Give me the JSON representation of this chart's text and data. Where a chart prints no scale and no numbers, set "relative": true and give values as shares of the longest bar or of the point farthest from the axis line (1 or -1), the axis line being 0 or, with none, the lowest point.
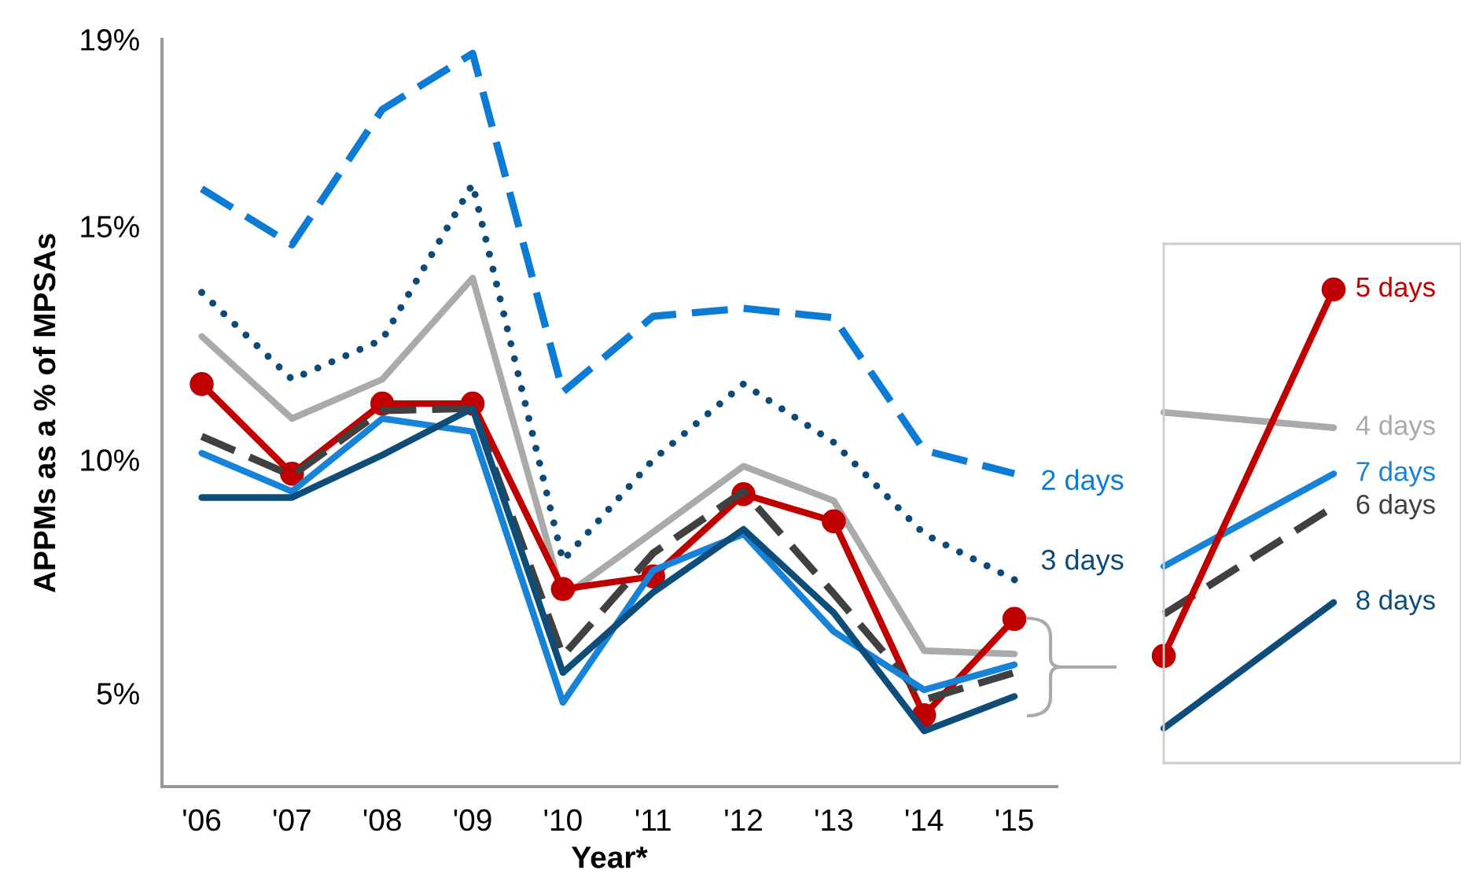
{
  "chart_data": [
    {
      "type": "line",
      "xlabel": "Year*",
      "ylabel": "APPMs as a % of MPSAs",
      "categories": [
        "'06",
        "'07",
        "'08",
        "'09",
        "'10",
        "'11",
        "'12",
        "'13",
        "'14",
        "'15"
      ],
      "ylim": [
        3,
        19
      ],
      "yticks": [
        {
          "value": 5,
          "label": "5%"
        },
        {
          "value": 10,
          "label": "10%"
        },
        {
          "value": 15,
          "label": "15%"
        },
        {
          "value": 19,
          "label": "19%"
        }
      ],
      "grid": false,
      "series": [
        {
          "name": "2 days",
          "color": "#0b7bd6",
          "line_style": "dashed",
          "values": [
            15.8,
            14.6,
            17.5,
            18.7,
            11.45,
            13.07,
            13.24,
            13.04,
            10.2,
            9.7
          ]
        },
        {
          "name": "3 days",
          "color": "#0d4a78",
          "line_style": "dotted",
          "values": [
            13.58,
            11.72,
            12.57,
            15.9,
            7.84,
            10.0,
            11.62,
            10.37,
            8.41,
            7.43
          ]
        },
        {
          "color": "#aaaaaa",
          "line_style": "solid",
          "values": [
            12.64,
            10.88,
            11.72,
            13.89,
            7.06,
            8.45,
            9.86,
            9.12,
            5.91,
            5.84
          ]
        },
        {
          "color": "#c00000",
          "line_style": "solid",
          "marker": "circle",
          "values": [
            11.62,
            9.7,
            11.2,
            11.2,
            7.23,
            7.5,
            9.26,
            8.68,
            4.53,
            6.59
          ]
        },
        {
          "color": "#404040",
          "line_style": "dashed",
          "values": [
            10.5,
            9.66,
            11.05,
            11.1,
            5.8,
            8.0,
            9.32,
            7.13,
            4.86,
            5.44
          ]
        },
        {
          "color": "#1683d8",
          "line_style": "solid",
          "values": [
            10.14,
            9.32,
            10.88,
            10.6,
            4.8,
            7.63,
            8.41,
            6.32,
            5.07,
            5.61
          ]
        },
        {
          "color": "#0e4d7a",
          "line_style": "solid",
          "values": [
            9.19,
            9.19,
            10.1,
            11.1,
            5.44,
            7.16,
            8.51,
            6.72,
            4.19,
            4.93
          ]
        }
      ]
    },
    {
      "type": "line",
      "relative": true,
      "categories": [
        null,
        null
      ],
      "series": [
        {
          "name": "4 days",
          "color": "#aaaaaa",
          "line_style": "solid",
          "values": [
            0.72,
            0.685
          ]
        },
        {
          "name": "7 days",
          "color": "#1683d8",
          "line_style": "solid",
          "values": [
            0.369,
            0.58
          ]
        },
        {
          "name": "6 days",
          "color": "#404040",
          "line_style": "dashed",
          "values": [
            0.26,
            0.505
          ]
        },
        {
          "name": "8 days",
          "color": "#0e4d7a",
          "line_style": "solid",
          "values": [
            0.0,
            0.287
          ]
        },
        {
          "name": "5 days",
          "color": "#c00000",
          "line_style": "solid",
          "marker": "circle",
          "values": [
            0.165,
            1.0
          ]
        }
      ]
    }
  ]
}
